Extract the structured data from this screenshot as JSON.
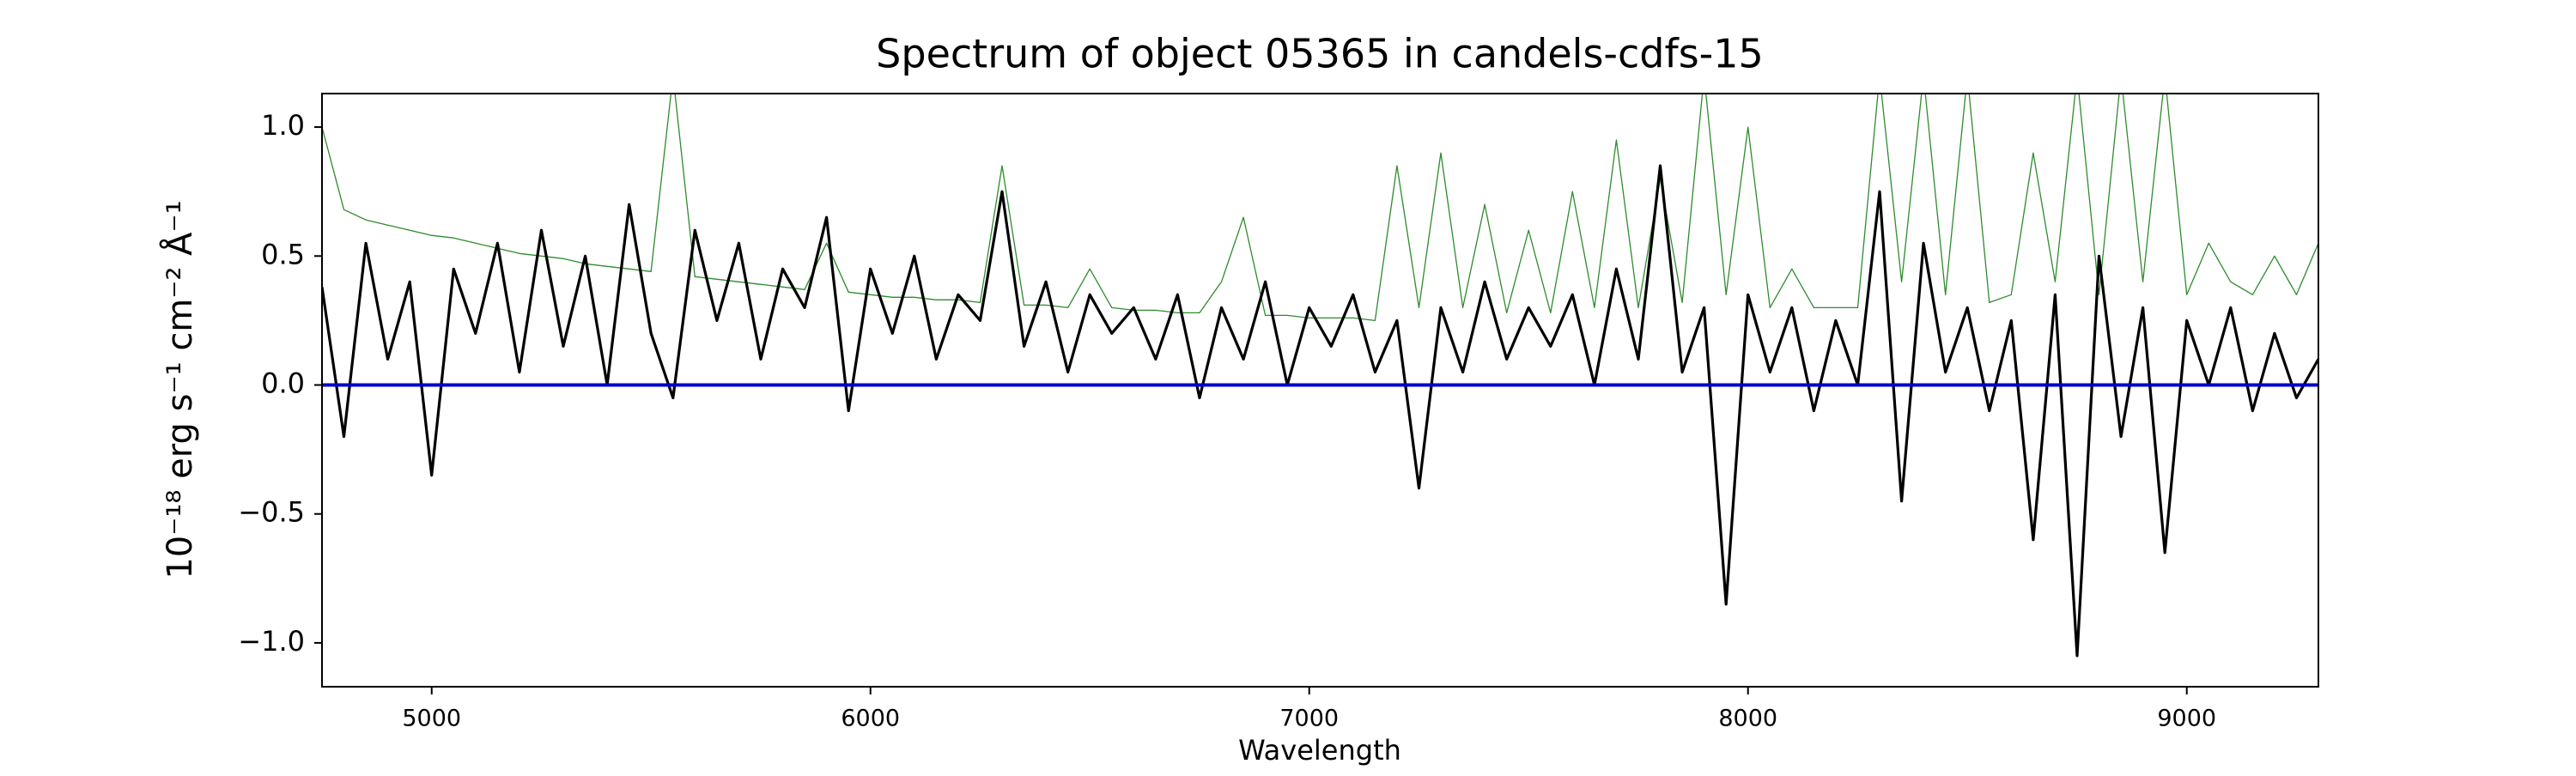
{
  "chart_data": {
    "type": "line",
    "title": "Spectrum of object 05365 in candels-cdfs-15",
    "xlabel": "Wavelength",
    "ylabel": "10⁻¹⁸ erg s⁻¹ cm⁻² Å⁻¹",
    "x": [
      4750,
      4800,
      4850,
      4900,
      4950,
      5000,
      5050,
      5100,
      5150,
      5200,
      5250,
      5300,
      5350,
      5400,
      5450,
      5500,
      5550,
      5600,
      5650,
      5700,
      5750,
      5800,
      5850,
      5900,
      5950,
      6000,
      6050,
      6100,
      6150,
      6200,
      6250,
      6300,
      6350,
      6400,
      6450,
      6500,
      6550,
      6600,
      6650,
      6700,
      6750,
      6800,
      6850,
      6900,
      6950,
      7000,
      7050,
      7100,
      7150,
      7200,
      7250,
      7300,
      7350,
      7400,
      7450,
      7500,
      7550,
      7600,
      7650,
      7700,
      7750,
      7800,
      7850,
      7900,
      7950,
      8000,
      8050,
      8100,
      8150,
      8200,
      8250,
      8300,
      8350,
      8400,
      8450,
      8500,
      8550,
      8600,
      8650,
      8700,
      8750,
      8800,
      8850,
      8900,
      8950,
      9000,
      9050,
      9100,
      9150,
      9200,
      9250,
      9300
    ],
    "series": [
      {
        "color": "#2e8b2e",
        "values": [
          1.0,
          0.68,
          0.64,
          0.62,
          0.6,
          0.58,
          0.57,
          0.55,
          0.53,
          0.51,
          0.5,
          0.49,
          0.47,
          0.46,
          0.45,
          0.44,
          1.2,
          0.42,
          0.41,
          0.4,
          0.39,
          0.38,
          0.37,
          0.55,
          0.36,
          0.35,
          0.34,
          0.34,
          0.33,
          0.33,
          0.32,
          0.85,
          0.31,
          0.31,
          0.3,
          0.45,
          0.3,
          0.29,
          0.29,
          0.28,
          0.28,
          0.4,
          0.65,
          0.27,
          0.27,
          0.26,
          0.26,
          0.26,
          0.25,
          0.85,
          0.3,
          0.9,
          0.3,
          0.7,
          0.28,
          0.6,
          0.28,
          0.75,
          0.3,
          0.95,
          0.3,
          0.8,
          0.32,
          1.2,
          0.35,
          1.0,
          0.3,
          0.45,
          0.3,
          0.3,
          0.3,
          1.2,
          0.4,
          1.2,
          0.35,
          1.2,
          0.32,
          0.35,
          0.9,
          0.4,
          1.2,
          0.35,
          1.2,
          0.4,
          1.2,
          0.35,
          0.55,
          0.4,
          0.35,
          0.5,
          0.35,
          0.55
        ]
      },
      {
        "color": "#000000",
        "values": [
          0.38,
          -0.2,
          0.55,
          0.1,
          0.4,
          -0.35,
          0.45,
          0.2,
          0.55,
          0.05,
          0.6,
          0.15,
          0.5,
          0.0,
          0.7,
          0.2,
          -0.05,
          0.6,
          0.25,
          0.55,
          0.1,
          0.45,
          0.3,
          0.65,
          -0.1,
          0.45,
          0.2,
          0.5,
          0.1,
          0.35,
          0.25,
          0.75,
          0.15,
          0.4,
          0.05,
          0.35,
          0.2,
          0.3,
          0.1,
          0.35,
          -0.05,
          0.3,
          0.1,
          0.4,
          0.0,
          0.3,
          0.15,
          0.35,
          0.05,
          0.25,
          -0.4,
          0.3,
          0.05,
          0.4,
          0.1,
          0.3,
          0.15,
          0.35,
          0.0,
          0.45,
          0.1,
          0.85,
          0.05,
          0.3,
          -0.85,
          0.35,
          0.05,
          0.3,
          -0.1,
          0.25,
          0.0,
          0.75,
          -0.45,
          0.55,
          0.05,
          0.3,
          -0.1,
          0.25,
          -0.6,
          0.35,
          -1.05,
          0.5,
          -0.2,
          0.3,
          -0.65,
          0.25,
          0.0,
          0.3,
          -0.1,
          0.2,
          -0.05,
          0.1
        ]
      },
      {
        "color": "#0000cc",
        "values": [
          0,
          0,
          0,
          0,
          0,
          0,
          0,
          0,
          0,
          0,
          0,
          0,
          0,
          0,
          0,
          0,
          0,
          0,
          0,
          0,
          0,
          0,
          0,
          0,
          0,
          0,
          0,
          0,
          0,
          0,
          0,
          0,
          0,
          0,
          0,
          0,
          0,
          0,
          0,
          0,
          0,
          0,
          0,
          0,
          0,
          0,
          0,
          0,
          0,
          0,
          0,
          0,
          0,
          0,
          0,
          0,
          0,
          0,
          0,
          0,
          0,
          0,
          0,
          0,
          0,
          0,
          0,
          0,
          0,
          0,
          0,
          0,
          0,
          0,
          0,
          0,
          0,
          0,
          0,
          0,
          0,
          0,
          0,
          0,
          0,
          0,
          0,
          0,
          0,
          0,
          0,
          0
        ]
      }
    ],
    "xlim": [
      4750,
      9300
    ],
    "ylim": [
      -1.17,
      1.13
    ],
    "xticks": [
      5000,
      6000,
      7000,
      8000,
      9000
    ],
    "yticks": [
      {
        "value": -1,
        "label": "−1.0"
      },
      {
        "value": -0.5,
        "label": "−0.5"
      },
      {
        "value": 0,
        "label": "0.0"
      },
      0.5,
      {
        "value": 1,
        "label": "1.0"
      }
    ],
    "grid": false
  }
}
